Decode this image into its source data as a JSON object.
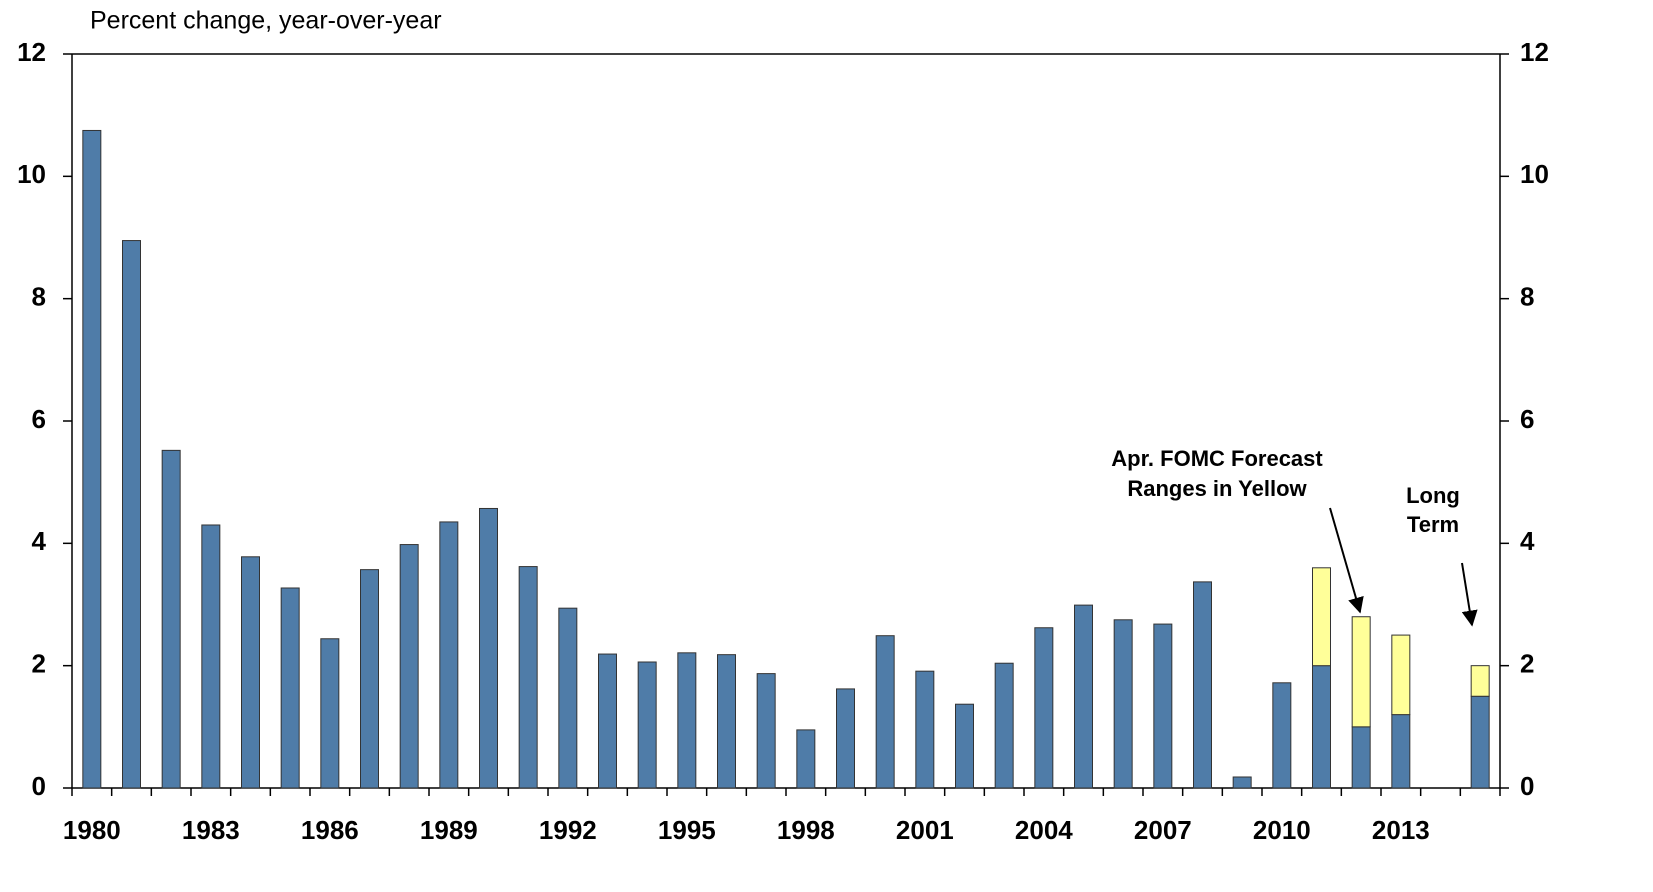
{
  "chart_data": {
    "type": "stacked_bar",
    "y_axis_label": "Percent change, year-over-year",
    "categories": [
      "1980",
      null,
      null,
      "1983",
      null,
      null,
      "1986",
      null,
      null,
      "1989",
      null,
      null,
      "1992",
      null,
      null,
      "1995",
      null,
      null,
      "1998",
      null,
      null,
      "2001",
      null,
      null,
      "2004",
      null,
      null,
      "2007",
      null,
      null,
      "2010",
      null,
      null,
      "2013",
      null,
      null
    ],
    "series": [
      {
        "color": "#4f7ca8",
        "values": [
          10.75,
          8.95,
          5.52,
          4.3,
          3.78,
          3.27,
          2.44,
          3.57,
          3.98,
          4.35,
          4.57,
          3.62,
          2.94,
          2.19,
          2.06,
          2.21,
          2.18,
          1.87,
          0.95,
          1.62,
          2.49,
          1.91,
          1.37,
          2.04,
          2.62,
          2.99,
          2.75,
          2.68,
          3.37,
          0.18,
          1.72,
          2.0,
          1.0,
          1.2,
          null,
          1.5
        ]
      },
      {
        "color": "#ffff99",
        "values": [
          null,
          null,
          null,
          null,
          null,
          null,
          null,
          null,
          null,
          null,
          null,
          null,
          null,
          null,
          null,
          null,
          null,
          null,
          null,
          null,
          null,
          null,
          null,
          null,
          null,
          null,
          null,
          null,
          null,
          null,
          null,
          1.6,
          1.8,
          1.3,
          null,
          0.5
        ]
      }
    ],
    "annotations": [
      {
        "lines": [
          "Apr. FOMC Forecast",
          "Ranges in Yellow"
        ]
      },
      {
        "lines": [
          "Long",
          "Term"
        ]
      }
    ],
    "ylim": [
      0,
      12
    ],
    "yticks": [
      0,
      2,
      4,
      6,
      8,
      10,
      12
    ],
    "y2lim": [
      0,
      12
    ],
    "y2ticks": [
      0,
      2,
      4,
      6,
      8,
      10,
      12
    ],
    "grid": false
  }
}
